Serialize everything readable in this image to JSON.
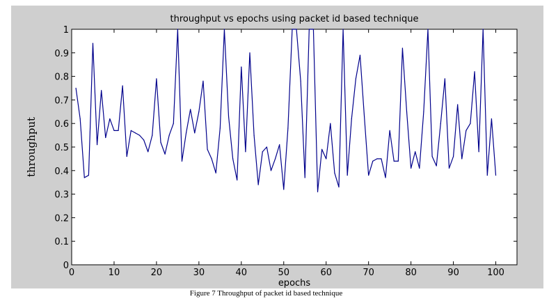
{
  "caption": "Figure 7 Throughput of packet id based technique",
  "colors": {
    "figure_background": "#cfcfcf",
    "axes_background": "#ffffff",
    "series_line": "#00008b"
  },
  "chart_data": {
    "type": "line",
    "title": "throughput vs epochs using packet id based technique",
    "xlabel": "epochs",
    "ylabel": "throughput",
    "xlim": [
      0,
      105
    ],
    "ylim": [
      0,
      1
    ],
    "xticks": [
      0,
      10,
      20,
      30,
      40,
      50,
      60,
      70,
      80,
      90,
      100
    ],
    "yticks": [
      0,
      0.1,
      0.2,
      0.3,
      0.4,
      0.5,
      0.6,
      0.7,
      0.8,
      0.9,
      1
    ],
    "xtick_labels": [
      "0",
      "10",
      "20",
      "30",
      "40",
      "50",
      "60",
      "70",
      "80",
      "90",
      "100"
    ],
    "ytick_labels": [
      "0",
      "0.1",
      "0.2",
      "0.3",
      "0.4",
      "0.5",
      "0.6",
      "0.7",
      "0.8",
      "0.9",
      "1"
    ],
    "grid": false,
    "legend": "none",
    "series": [
      {
        "x": [
          1,
          2,
          3,
          4,
          5,
          6,
          7,
          8,
          9,
          10,
          11,
          12,
          13,
          14,
          15,
          16,
          17,
          18,
          19,
          20,
          21,
          22,
          23,
          24,
          25,
          26,
          27,
          28,
          29,
          30,
          31,
          32,
          33,
          34,
          35,
          36,
          37,
          38,
          39,
          40,
          41,
          42,
          43,
          44,
          45,
          46,
          47,
          48,
          49,
          50,
          51,
          52,
          53,
          54,
          55,
          56,
          57,
          58,
          59,
          60,
          61,
          62,
          63,
          64,
          65,
          66,
          67,
          68,
          69,
          70,
          71,
          72,
          73,
          74,
          75,
          76,
          77,
          78,
          79,
          80,
          81,
          82,
          83,
          84,
          85,
          86,
          87,
          88,
          89,
          90,
          91,
          92,
          93,
          94,
          95,
          96,
          97,
          98,
          99,
          100
        ],
        "y": [
          0.75,
          0.62,
          0.37,
          0.38,
          0.94,
          0.51,
          0.74,
          0.54,
          0.62,
          0.57,
          0.57,
          0.76,
          0.46,
          0.57,
          0.56,
          0.55,
          0.53,
          0.48,
          0.55,
          0.79,
          0.52,
          0.47,
          0.55,
          0.6,
          1.0,
          0.44,
          0.56,
          0.66,
          0.56,
          0.65,
          0.78,
          0.49,
          0.45,
          0.39,
          0.58,
          1.0,
          0.63,
          0.45,
          0.36,
          0.84,
          0.48,
          0.9,
          0.55,
          0.34,
          0.48,
          0.5,
          0.4,
          0.45,
          0.51,
          0.32,
          0.58,
          1.0,
          1.0,
          0.78,
          0.37,
          1.0,
          1.0,
          0.31,
          0.49,
          0.45,
          0.6,
          0.39,
          0.33,
          1.0,
          0.38,
          0.62,
          0.79,
          0.89,
          0.63,
          0.38,
          0.44,
          0.45,
          0.45,
          0.37,
          0.57,
          0.44,
          0.44,
          0.92,
          0.65,
          0.41,
          0.48,
          0.41,
          0.65,
          1.0,
          0.46,
          0.42,
          0.6,
          0.79,
          0.41,
          0.46,
          0.68,
          0.45,
          0.57,
          0.6,
          0.82,
          0.48,
          1.0,
          0.38,
          0.62,
          0.38
        ]
      }
    ]
  }
}
